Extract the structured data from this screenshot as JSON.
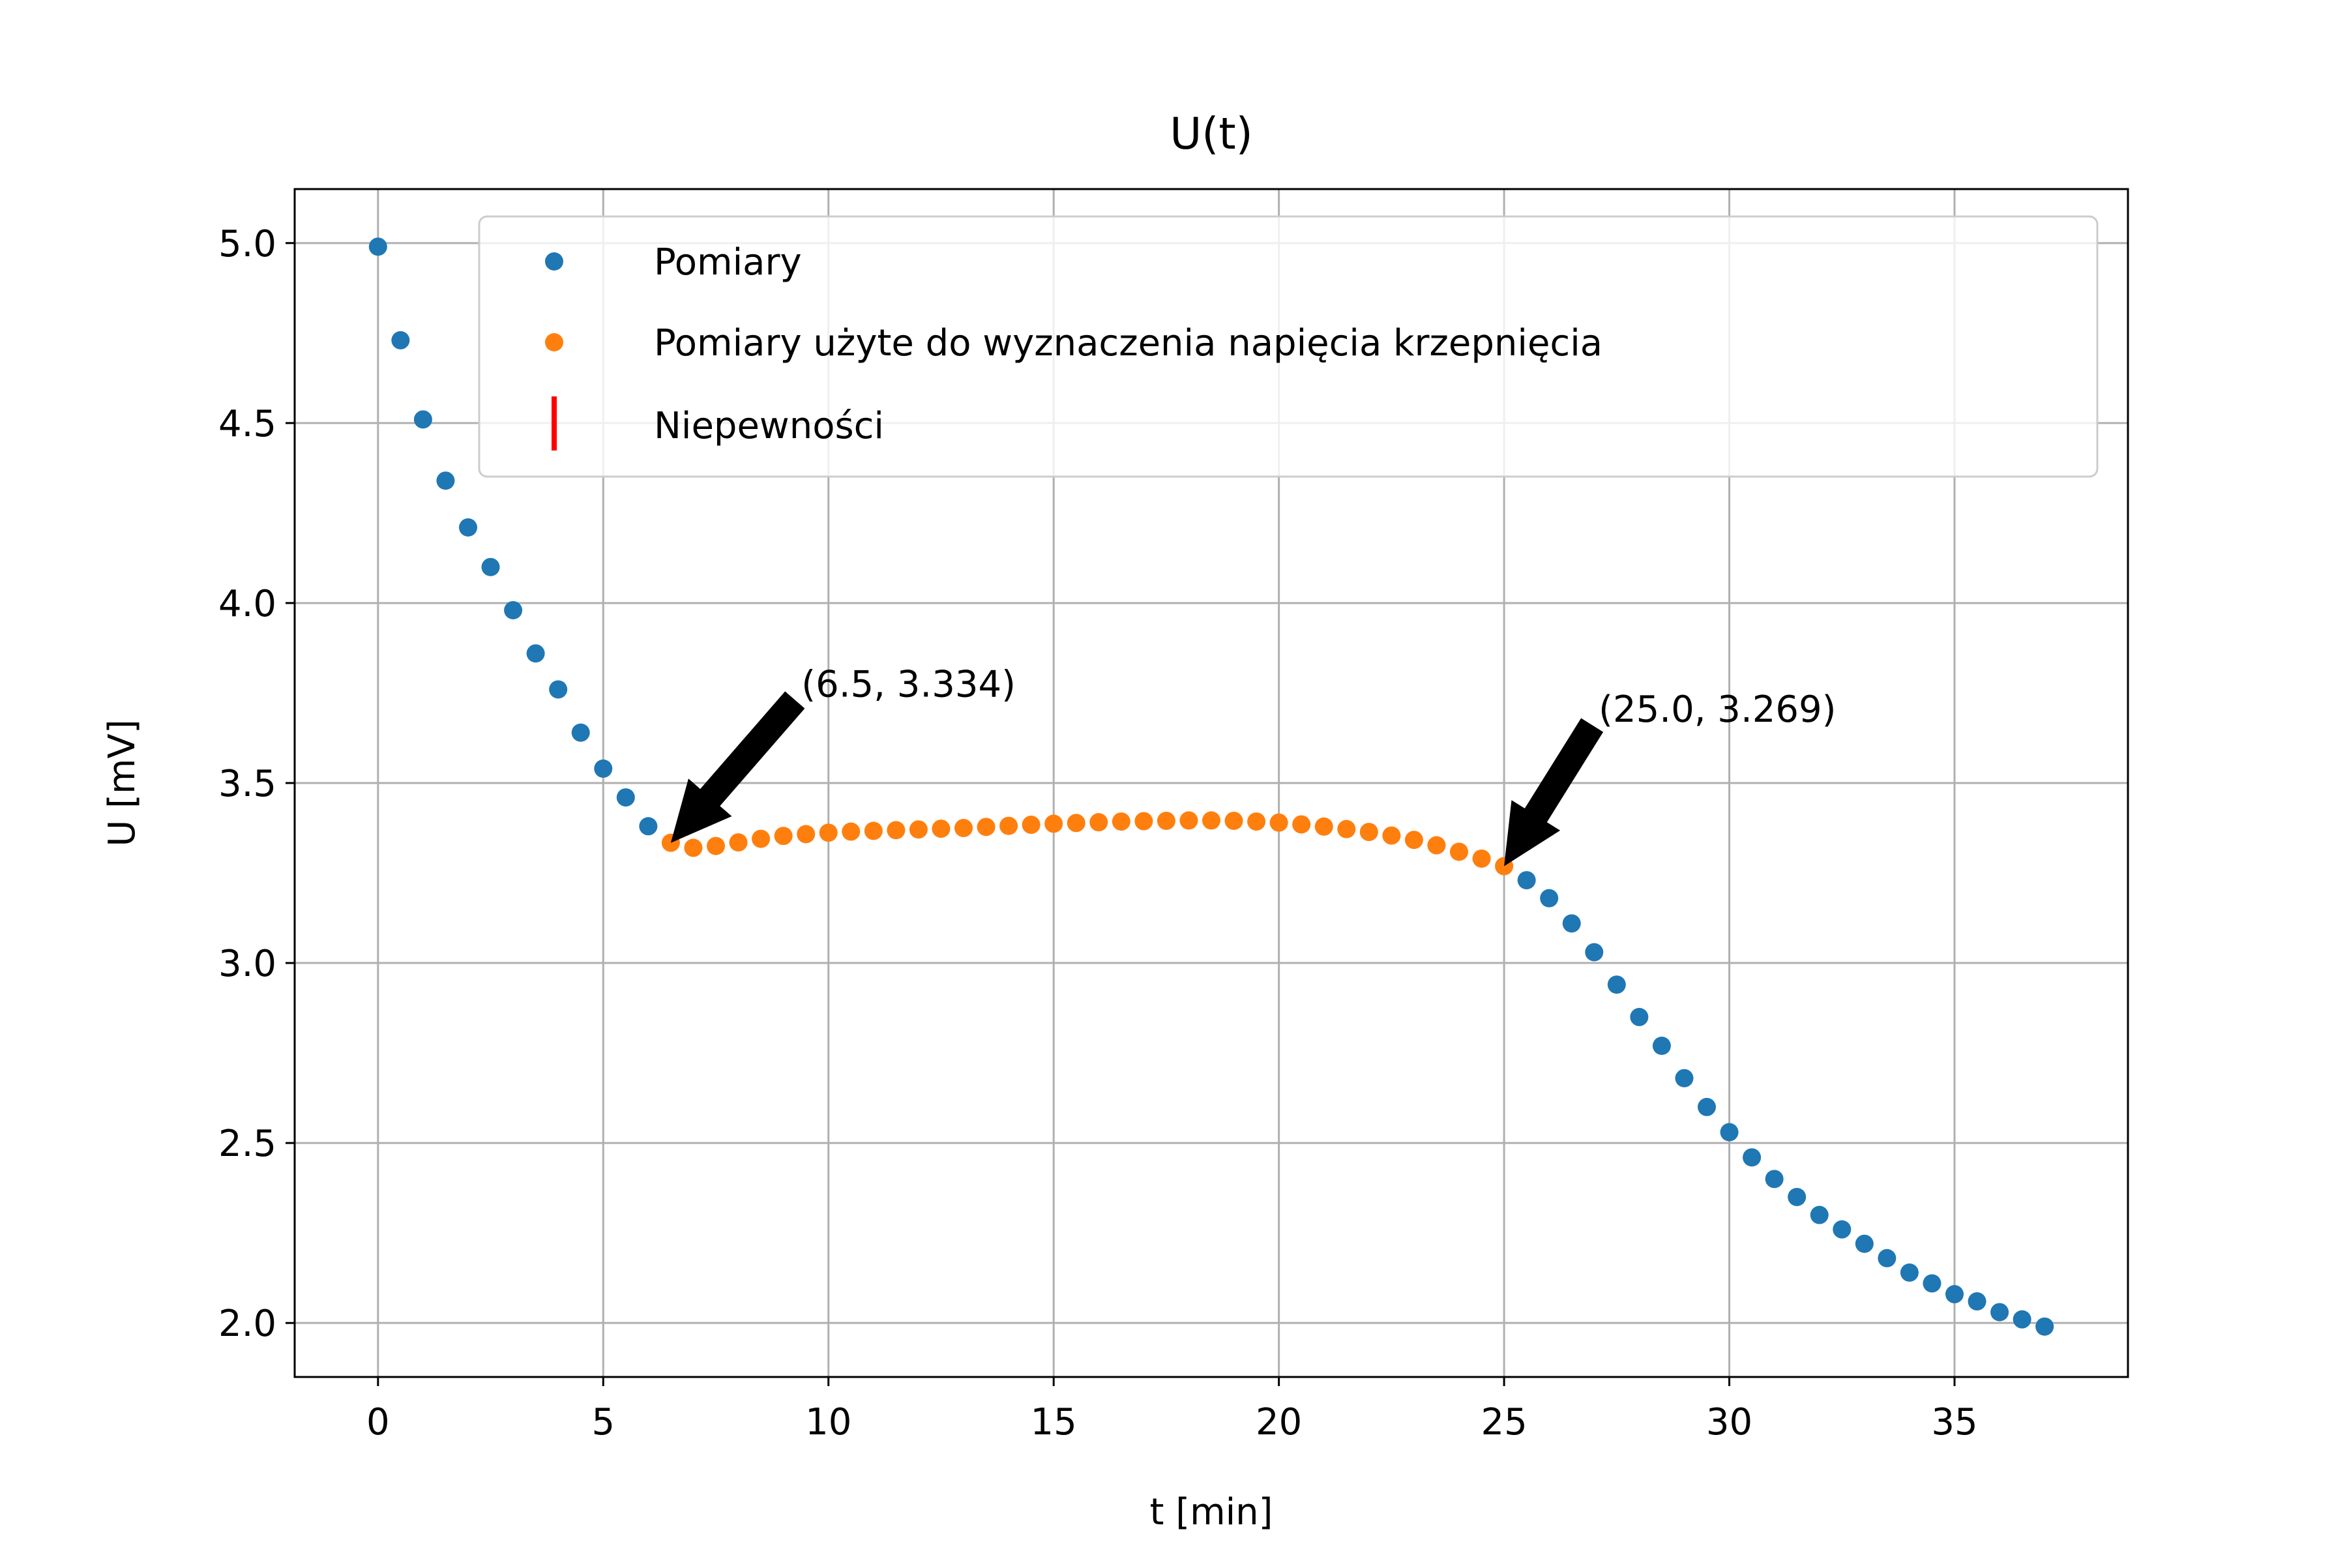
{
  "chart_data": {
    "type": "scatter",
    "title": "U(t)",
    "xlabel": "t [min]",
    "ylabel": "U [mV]",
    "xlim": [
      -1.85,
      38.85
    ],
    "ylim": [
      1.85,
      5.15
    ],
    "xticks": [
      0,
      5,
      10,
      15,
      20,
      25,
      30,
      35
    ],
    "xtick_labels": [
      "0",
      "5",
      "10",
      "15",
      "20",
      "25",
      "30",
      "35"
    ],
    "yticks": [
      2.0,
      2.5,
      3.0,
      3.5,
      4.0,
      4.5,
      5.0
    ],
    "ytick_labels": [
      "2.0",
      "2.5",
      "3.0",
      "3.5",
      "4.0",
      "4.5",
      "5.0"
    ],
    "grid": true,
    "legend_position": "top-right",
    "series": [
      {
        "name": "Pomiary",
        "color": "#1f77b4",
        "x": [
          0,
          0.5,
          1,
          1.5,
          2,
          2.5,
          3,
          3.5,
          4,
          4.5,
          5,
          5.5,
          6,
          25.5,
          26,
          26.5,
          27,
          27.5,
          28,
          28.5,
          29,
          29.5,
          30,
          30.5,
          31,
          31.5,
          32,
          32.5,
          33,
          33.5,
          34,
          34.5,
          35,
          35.5,
          36,
          36.5,
          37
        ],
        "y": [
          4.99,
          4.73,
          4.51,
          4.34,
          4.21,
          4.1,
          3.98,
          3.86,
          3.76,
          3.64,
          3.54,
          3.46,
          3.38,
          3.23,
          3.18,
          3.11,
          3.03,
          2.94,
          2.85,
          2.77,
          2.68,
          2.6,
          2.53,
          2.46,
          2.4,
          2.35,
          2.3,
          2.26,
          2.22,
          2.18,
          2.14,
          2.11,
          2.08,
          2.06,
          2.03,
          2.01,
          1.99
        ]
      },
      {
        "name": "Pomiary użyte do wyznaczenia napięcia krzepnięcia",
        "color": "#ff7f0e",
        "x": [
          6.5,
          7,
          7.5,
          8,
          8.5,
          9,
          9.5,
          10,
          10.5,
          11,
          11.5,
          12,
          12.5,
          13,
          13.5,
          14,
          14.5,
          15,
          15.5,
          16,
          16.5,
          17,
          17.5,
          18,
          18.5,
          19,
          19.5,
          20,
          20.5,
          21,
          21.5,
          22,
          22.5,
          23,
          23.5,
          24,
          24.5,
          25
        ],
        "y": [
          3.334,
          3.32,
          3.325,
          3.335,
          3.345,
          3.353,
          3.358,
          3.362,
          3.365,
          3.367,
          3.369,
          3.371,
          3.373,
          3.375,
          3.378,
          3.381,
          3.384,
          3.387,
          3.389,
          3.391,
          3.393,
          3.394,
          3.395,
          3.396,
          3.396,
          3.395,
          3.393,
          3.39,
          3.385,
          3.379,
          3.372,
          3.364,
          3.354,
          3.342,
          3.327,
          3.309,
          3.29,
          3.269
        ]
      },
      {
        "name": "Niepewności",
        "color": "#ff0000"
      }
    ],
    "annotations": [
      {
        "text": "(6.5, 3.334)",
        "x": 6.5,
        "y": 3.334,
        "text_x": 9.4,
        "text_y": 3.74
      },
      {
        "text": "(25.0, 3.269)",
        "x": 25.0,
        "y": 3.269,
        "text_x": 27.1,
        "text_y": 3.67
      }
    ]
  }
}
